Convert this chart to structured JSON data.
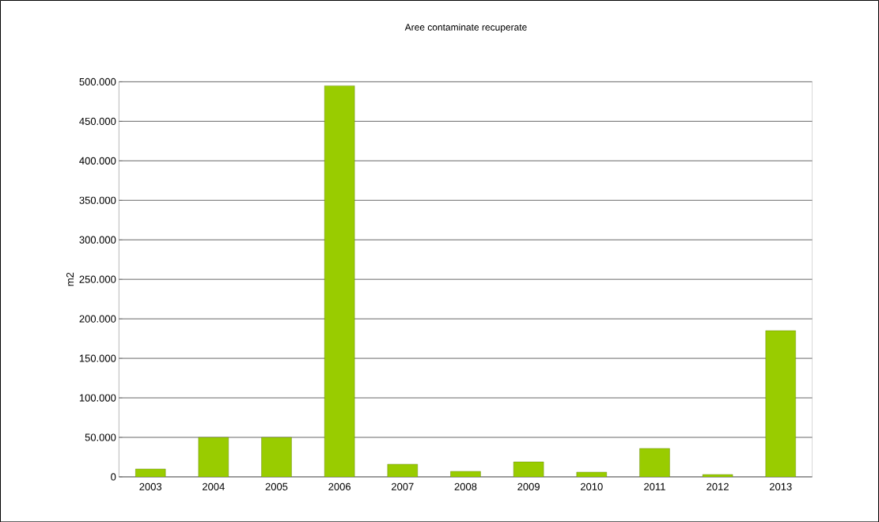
{
  "chart_data": {
    "type": "bar",
    "title": "Aree contaminate recuperate",
    "ylabel": "m2",
    "categories": [
      "2003",
      "2004",
      "2005",
      "2006",
      "2007",
      "2008",
      "2009",
      "2010",
      "2011",
      "2012",
      "2013"
    ],
    "values": [
      10000,
      50000,
      50000,
      495000,
      16000,
      7000,
      19000,
      6000,
      36000,
      3000,
      185000
    ],
    "color": "#99cc00",
    "ylim": [
      0,
      500000
    ],
    "yticks": [
      {
        "value": 0,
        "label": "0"
      },
      {
        "value": 50000,
        "label": "50.000"
      },
      {
        "value": 100000,
        "label": "100.000"
      },
      {
        "value": 150000,
        "label": "150.000"
      },
      {
        "value": 200000,
        "label": "200.000"
      },
      {
        "value": 250000,
        "label": "250.000"
      },
      {
        "value": 300000,
        "label": "300.000"
      },
      {
        "value": 350000,
        "label": "350.000"
      },
      {
        "value": 400000,
        "label": "400.000"
      },
      {
        "value": 450000,
        "label": "450.000"
      },
      {
        "value": 500000,
        "label": "500.000"
      }
    ],
    "grid": "y"
  }
}
